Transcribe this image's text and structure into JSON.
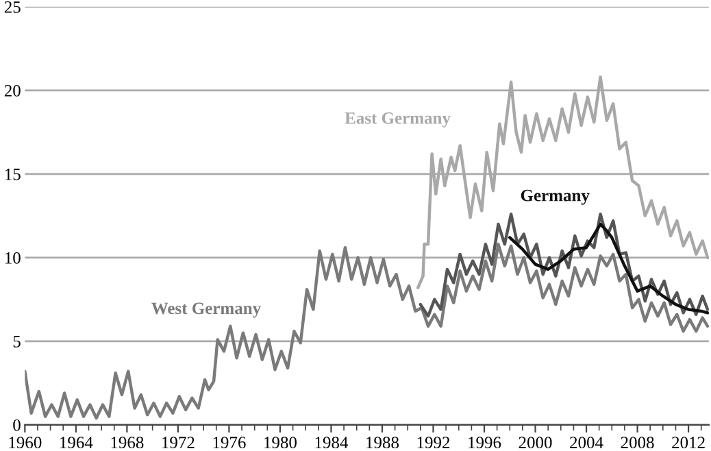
{
  "chart_data": {
    "type": "line",
    "xlim": [
      1960,
      2013.6
    ],
    "ylim": [
      0,
      25
    ],
    "xticks": [
      1960,
      1964,
      1968,
      1972,
      1976,
      1980,
      1984,
      1988,
      1992,
      1996,
      2000,
      2004,
      2008,
      2012
    ],
    "yticks": [
      0,
      5,
      10,
      15,
      20,
      25
    ],
    "grid": "y",
    "marker": "none",
    "line_style": "solid",
    "series": [
      {
        "name": "West Germany",
        "color": "#7a7a7a",
        "x": [
          1960.0,
          1960.5,
          1961.1,
          1961.6,
          1962.1,
          1962.6,
          1963.1,
          1963.6,
          1964.1,
          1964.6,
          1965.1,
          1965.6,
          1966.1,
          1966.6,
          1967.1,
          1967.6,
          1968.1,
          1968.6,
          1969.1,
          1969.6,
          1970.1,
          1970.6,
          1971.1,
          1971.6,
          1972.1,
          1972.6,
          1973.1,
          1973.6,
          1974.1,
          1974.4,
          1974.8,
          1975.1,
          1975.6,
          1976.1,
          1976.6,
          1977.1,
          1977.6,
          1978.1,
          1978.6,
          1979.1,
          1979.6,
          1980.1,
          1980.6,
          1981.1,
          1981.6,
          1982.1,
          1982.6,
          1983.1,
          1983.6,
          1984.1,
          1984.6,
          1985.1,
          1985.6,
          1986.1,
          1986.6,
          1987.1,
          1987.6,
          1988.1,
          1988.6,
          1989.1,
          1989.6,
          1990.1,
          1990.6,
          1991.1,
          1991.6,
          1992.1,
          1992.6,
          1993.1,
          1993.6,
          1994.1,
          1994.6,
          1995.1,
          1995.6,
          1996.1,
          1996.6,
          1997.1,
          1997.6,
          1998.1,
          1998.6,
          1999.1,
          1999.6,
          2000.1,
          2000.6,
          2001.1,
          2001.6,
          2002.1,
          2002.6,
          2003.1,
          2003.6,
          2004.1,
          2004.6,
          2005.1,
          2005.6,
          2006.1,
          2006.6,
          2007.1,
          2007.6,
          2008.1,
          2008.6,
          2009.1,
          2009.6,
          2010.1,
          2010.6,
          2011.1,
          2011.6,
          2012.1,
          2012.6,
          2013.1,
          2013.5
        ],
        "values": [
          3.2,
          0.7,
          2.0,
          0.5,
          1.2,
          0.5,
          1.9,
          0.5,
          1.5,
          0.5,
          1.2,
          0.4,
          1.2,
          0.5,
          3.1,
          1.8,
          3.2,
          1.0,
          1.8,
          0.6,
          1.3,
          0.5,
          1.3,
          0.7,
          1.7,
          0.9,
          1.6,
          1.0,
          2.7,
          2.1,
          2.6,
          5.1,
          4.4,
          5.9,
          4.0,
          5.5,
          4.1,
          5.4,
          3.9,
          5.1,
          3.3,
          4.4,
          3.4,
          5.6,
          4.9,
          8.1,
          6.9,
          10.4,
          8.7,
          10.2,
          8.6,
          10.6,
          8.7,
          10.0,
          8.4,
          10.0,
          8.5,
          9.9,
          8.3,
          9.0,
          7.5,
          8.3,
          6.8,
          7.0,
          5.9,
          6.6,
          5.9,
          8.3,
          7.3,
          9.2,
          8.0,
          8.9,
          8.1,
          9.8,
          8.6,
          10.8,
          9.5,
          10.7,
          9.0,
          10.0,
          8.5,
          9.2,
          7.6,
          8.4,
          7.2,
          8.6,
          7.7,
          9.4,
          8.3,
          9.3,
          8.4,
          10.1,
          9.5,
          10.2,
          8.6,
          9.0,
          7.0,
          7.5,
          6.2,
          7.3,
          6.5,
          7.3,
          6.0,
          6.6,
          5.6,
          6.3,
          5.6,
          6.4,
          5.9
        ]
      },
      {
        "color": "#555555",
        "x": [
          1991.0,
          1991.6,
          1992.1,
          1992.6,
          1993.1,
          1993.6,
          1994.1,
          1994.6,
          1995.1,
          1995.6,
          1996.1,
          1996.6,
          1997.1,
          1997.6,
          1998.1,
          1998.6,
          1999.1,
          1999.6,
          2000.1,
          2000.6,
          2001.1,
          2001.6,
          2002.1,
          2002.6,
          2003.1,
          2003.6,
          2004.1,
          2004.6,
          2005.1,
          2005.6,
          2006.1,
          2006.6,
          2007.1,
          2007.6,
          2008.1,
          2008.6,
          2009.1,
          2009.6,
          2010.1,
          2010.6,
          2011.1,
          2011.6,
          2012.1,
          2012.6,
          2013.1,
          2013.5
        ],
        "values": [
          7.2,
          6.5,
          7.5,
          6.9,
          9.3,
          8.5,
          10.2,
          9.0,
          9.8,
          9.0,
          10.8,
          9.6,
          12.0,
          10.8,
          12.6,
          10.8,
          11.4,
          10.0,
          10.8,
          9.0,
          10.0,
          8.9,
          10.4,
          9.4,
          11.3,
          10.1,
          11.0,
          10.6,
          12.6,
          11.2,
          12.2,
          10.2,
          10.3,
          8.6,
          8.9,
          7.4,
          8.7,
          7.8,
          8.6,
          7.2,
          7.9,
          6.7,
          7.5,
          6.6,
          7.7,
          6.9
        ]
      },
      {
        "name": "East Germany",
        "color": "#a8a8a8",
        "x": [
          1990.8,
          1991.2,
          1991.3,
          1991.6,
          1991.9,
          1992.2,
          1992.6,
          1992.9,
          1993.4,
          1993.7,
          1994.1,
          1994.6,
          1994.9,
          1995.3,
          1995.8,
          1996.2,
          1996.7,
          1997.2,
          1997.5,
          1998.1,
          1998.5,
          1998.9,
          1999.2,
          1999.6,
          2000.1,
          2000.6,
          2001.1,
          2001.6,
          2002.1,
          2002.6,
          2003.1,
          2003.6,
          2004.1,
          2004.6,
          2005.1,
          2005.6,
          2006.1,
          2006.6,
          2007.1,
          2007.6,
          2008.1,
          2008.6,
          2009.1,
          2009.6,
          2010.1,
          2010.6,
          2011.1,
          2011.6,
          2012.1,
          2012.6,
          2013.1,
          2013.5
        ],
        "values": [
          8.2,
          8.9,
          10.8,
          10.8,
          16.2,
          13.8,
          15.9,
          14.3,
          16.0,
          15.2,
          16.7,
          14.0,
          12.4,
          14.4,
          12.8,
          16.3,
          14.0,
          18.0,
          16.8,
          20.5,
          17.5,
          16.3,
          18.5,
          16.9,
          18.6,
          17.0,
          18.3,
          17.0,
          18.9,
          17.5,
          19.8,
          17.9,
          19.6,
          18.1,
          20.8,
          18.2,
          19.2,
          16.5,
          16.9,
          14.6,
          14.3,
          12.5,
          13.4,
          12.0,
          13.0,
          11.3,
          12.2,
          10.7,
          11.5,
          10.2,
          11.0,
          10.0
        ]
      },
      {
        "name": "Germany",
        "color": "#111111",
        "x": [
          1998.0,
          1999.0,
          2000.0,
          2001.0,
          2002.0,
          2003.0,
          2004.0,
          2005.1,
          2005.6,
          2006.0,
          2007.0,
          2008.0,
          2009.0,
          2010.0,
          2011.0,
          2012.0,
          2013.0,
          2013.5
        ],
        "values": [
          11.2,
          10.5,
          9.6,
          9.3,
          9.8,
          10.5,
          10.6,
          12.0,
          11.6,
          11.2,
          9.5,
          8.0,
          8.3,
          7.7,
          7.2,
          6.9,
          6.8,
          6.7
        ]
      }
    ]
  }
}
